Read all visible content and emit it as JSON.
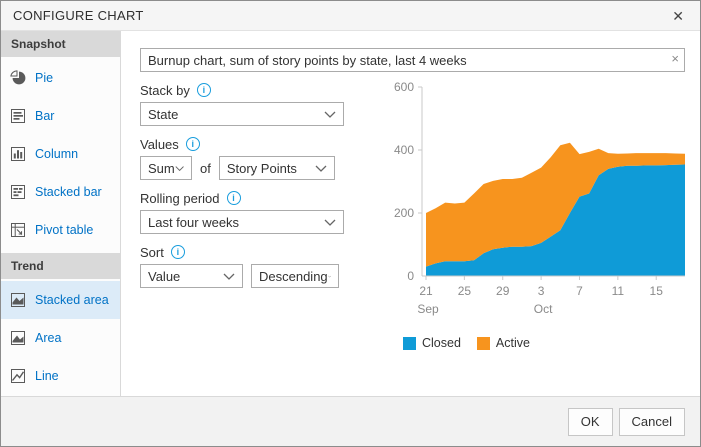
{
  "dialog": {
    "title": "CONFIGURE CHART"
  },
  "icons": {
    "info": "i",
    "close": "✕",
    "clear": "×"
  },
  "sidebar": {
    "sections": [
      {
        "header": "Snapshot",
        "items": [
          {
            "label": "Pie",
            "icon": "pie-chart-icon"
          },
          {
            "label": "Bar",
            "icon": "bar-chart-icon"
          },
          {
            "label": "Column",
            "icon": "column-chart-icon"
          },
          {
            "label": "Stacked bar",
            "icon": "stacked-bar-chart-icon"
          },
          {
            "label": "Pivot table",
            "icon": "pivot-table-icon"
          }
        ]
      },
      {
        "header": "Trend",
        "items": [
          {
            "label": "Stacked area",
            "icon": "stacked-area-chart-icon",
            "selected": true
          },
          {
            "label": "Area",
            "icon": "area-chart-icon"
          },
          {
            "label": "Line",
            "icon": "line-chart-icon"
          }
        ]
      }
    ]
  },
  "form": {
    "chart_name": "Burnup chart, sum of story points by state, last 4 weeks",
    "stack_by": {
      "label": "Stack by",
      "value": "State"
    },
    "values": {
      "label": "Values",
      "aggregate": "Sum",
      "connector": "of",
      "field": "Story Points"
    },
    "rolling_period": {
      "label": "Rolling period",
      "value": "Last four weeks"
    },
    "sort": {
      "label": "Sort",
      "by": "Value",
      "order": "Descending"
    }
  },
  "footer": {
    "ok_label": "OK",
    "cancel_label": "Cancel"
  },
  "chart_data": {
    "type": "area",
    "stacked": true,
    "title": "",
    "xlabel": "",
    "ylabel": "",
    "ylim": [
      0,
      600
    ],
    "yticks": [
      0,
      200,
      400,
      600
    ],
    "grid": false,
    "legend_position": "bottom",
    "x": [
      "Sep 21",
      "Sep 22",
      "Sep 23",
      "Sep 24",
      "Sep 25",
      "Sep 26",
      "Sep 27",
      "Sep 28",
      "Sep 29",
      "Sep 30",
      "Oct 1",
      "Oct 2",
      "Oct 3",
      "Oct 4",
      "Oct 5",
      "Oct 6",
      "Oct 7",
      "Oct 8",
      "Oct 9",
      "Oct 10",
      "Oct 11",
      "Oct 12",
      "Oct 13",
      "Oct 14",
      "Oct 15",
      "Oct 16",
      "Oct 17",
      "Oct 18"
    ],
    "xtick_indices": [
      0,
      4,
      8,
      12,
      16,
      20,
      24
    ],
    "xtick_labels": [
      "21",
      "25",
      "29",
      "3",
      "7",
      "11",
      "15"
    ],
    "month_labels": [
      {
        "index": 0,
        "label": "Sep"
      },
      {
        "index": 12,
        "label": "Oct"
      }
    ],
    "series": [
      {
        "name": "Closed",
        "color": "#0F9BD7",
        "values": [
          30,
          40,
          47,
          47,
          47,
          50,
          72,
          85,
          90,
          93,
          93,
          95,
          105,
          125,
          145,
          200,
          252,
          262,
          320,
          340,
          347,
          350,
          350,
          351,
          351,
          352,
          353,
          354
        ]
      },
      {
        "name": "Active",
        "color": "#F7941E",
        "values": [
          170,
          175,
          186,
          183,
          186,
          212,
          220,
          217,
          218,
          215,
          219,
          233,
          239,
          252,
          270,
          223,
          135,
          132,
          84,
          50,
          41,
          39,
          40,
          39,
          39,
          38,
          36,
          34
        ]
      }
    ]
  }
}
